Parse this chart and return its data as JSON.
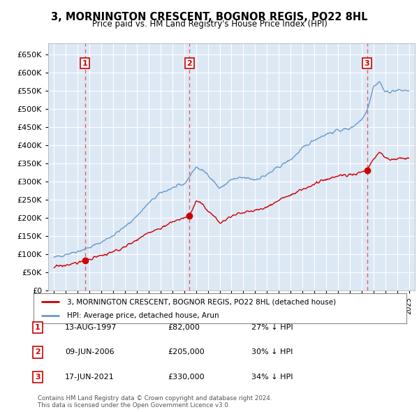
{
  "title": "3, MORNINGTON CRESCENT, BOGNOR REGIS, PO22 8HL",
  "subtitle": "Price paid vs. HM Land Registry's House Price Index (HPI)",
  "background_color": "#ffffff",
  "plot_bg_color": "#dde8f5",
  "red_color": "#cc0000",
  "blue_color": "#6699cc",
  "dashed_color": "#e06060",
  "transactions": [
    {
      "num": 1,
      "date": "13-AUG-1997",
      "price": 82000,
      "x_year": 1997.62,
      "pct": "27% ↓ HPI"
    },
    {
      "num": 2,
      "date": "09-JUN-2006",
      "price": 205000,
      "x_year": 2006.44,
      "pct": "30% ↓ HPI"
    },
    {
      "num": 3,
      "date": "17-JUN-2021",
      "price": 330000,
      "x_year": 2021.46,
      "pct": "34% ↓ HPI"
    }
  ],
  "legend_label_red": "3, MORNINGTON CRESCENT, BOGNOR REGIS, PO22 8HL (detached house)",
  "legend_label_blue": "HPI: Average price, detached house, Arun",
  "footer1": "Contains HM Land Registry data © Crown copyright and database right 2024.",
  "footer2": "This data is licensed under the Open Government Licence v3.0.",
  "ylim": [
    0,
    680000
  ],
  "xlim_start": 1994.5,
  "xlim_end": 2025.5
}
